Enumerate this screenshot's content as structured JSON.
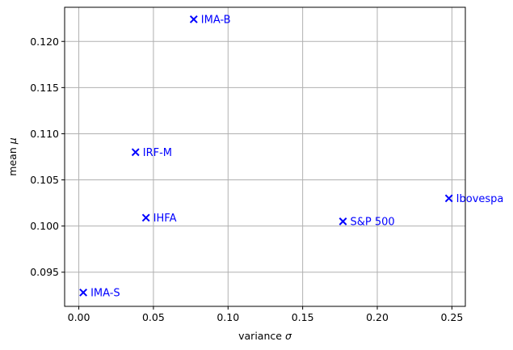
{
  "chart_data": {
    "type": "scatter",
    "xlabel": "variance",
    "xlabel_symbol": "σ",
    "ylabel": "mean",
    "ylabel_symbol": "μ",
    "xlim": [
      -0.0095,
      0.259
    ],
    "ylim": [
      0.0913,
      0.1237
    ],
    "xticks": [
      0.0,
      0.05,
      0.1,
      0.15,
      0.2,
      0.25
    ],
    "xtick_labels": [
      "0.00",
      "0.05",
      "0.10",
      "0.15",
      "0.20",
      "0.25"
    ],
    "yticks": [
      0.095,
      0.1,
      0.105,
      0.11,
      0.115,
      0.12
    ],
    "ytick_labels": [
      "0.095",
      "0.100",
      "0.105",
      "0.110",
      "0.115",
      "0.120"
    ],
    "grid": true,
    "marker": "x",
    "color": "#0000ff",
    "points": [
      {
        "label": "IMA-B",
        "x": 0.077,
        "y": 0.1224
      },
      {
        "label": "IRF-M",
        "x": 0.038,
        "y": 0.108
      },
      {
        "label": "IHFA",
        "x": 0.045,
        "y": 0.1009
      },
      {
        "label": "IMA-S",
        "x": 0.003,
        "y": 0.0928
      },
      {
        "label": "S&P 500",
        "x": 0.177,
        "y": 0.1005
      },
      {
        "label": "Ibovespa",
        "x": 0.248,
        "y": 0.103
      }
    ]
  }
}
